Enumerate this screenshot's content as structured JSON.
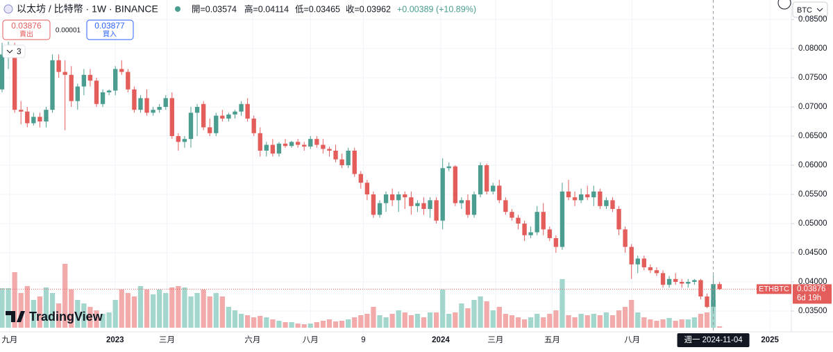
{
  "header": {
    "symbol": "以太坊 / 比特幣 · 1W · BINANCE",
    "ohlc": [
      "開=0.03574",
      "高=0.04114",
      "低=0.03465",
      "收=0.03962"
    ],
    "change": "+0.00389 (+10.89%)"
  },
  "trade": {
    "sell_price": "0.03876",
    "sell_label": "賣出",
    "spread": "0.00001",
    "buy_price": "0.03877",
    "buy_label": "買入"
  },
  "indicator_count": "3",
  "currency": "BTC",
  "brand": "TradingView",
  "chart_data": {
    "type": "candlestick",
    "open": [
      0.073,
      0.079,
      0.0805,
      0.0695,
      0.0692,
      0.0672,
      0.0683,
      0.0675,
      0.0695,
      0.078,
      0.076,
      0.0755,
      0.071,
      0.0735,
      0.0755,
      0.0745,
      0.0705,
      0.0725,
      0.0728,
      0.0765,
      0.076,
      0.073,
      0.0695,
      0.0715,
      0.069,
      0.0695,
      0.07,
      0.0715,
      0.065,
      0.064,
      0.0645,
      0.069,
      0.0705,
      0.0665,
      0.0655,
      0.0685,
      0.068,
      0.0687,
      0.0692,
      0.0705,
      0.068,
      0.0655,
      0.0625,
      0.0635,
      0.062,
      0.0637,
      0.0633,
      0.064,
      0.0635,
      0.0632,
      0.0645,
      0.0635,
      0.0628,
      0.0625,
      0.061,
      0.06,
      0.0625,
      0.0585,
      0.057,
      0.055,
      0.0515,
      0.0535,
      0.055,
      0.054,
      0.055,
      0.0545,
      0.053,
      0.0535,
      0.0525,
      0.054,
      0.0505,
      0.0595,
      0.0598,
      0.0535,
      0.054,
      0.0515,
      0.055,
      0.06,
      0.0555,
      0.0565,
      0.054,
      0.052,
      0.051,
      0.05,
      0.048,
      0.0485,
      0.052,
      0.049,
      0.0475,
      0.046,
      0.0555,
      0.0545,
      0.054,
      0.055,
      0.0545,
      0.0555,
      0.053,
      0.054,
      0.0525,
      0.049,
      0.046,
      0.043,
      0.044,
      0.0425,
      0.042,
      0.0415,
      0.0395,
      0.0405,
      0.04,
      0.0397,
      0.04,
      0.0403,
      0.0375,
      0.03574,
      0.03962
    ],
    "high": [
      0.081,
      0.0812,
      0.081,
      0.071,
      0.07,
      0.069,
      0.069,
      0.07,
      0.079,
      0.079,
      0.078,
      0.077,
      0.074,
      0.0765,
      0.0765,
      0.075,
      0.073,
      0.073,
      0.077,
      0.078,
      0.0765,
      0.0735,
      0.072,
      0.073,
      0.07,
      0.0705,
      0.072,
      0.0725,
      0.0655,
      0.065,
      0.07,
      0.0705,
      0.071,
      0.068,
      0.069,
      0.0695,
      0.069,
      0.0695,
      0.071,
      0.0715,
      0.0685,
      0.0665,
      0.064,
      0.0645,
      0.064,
      0.0645,
      0.0642,
      0.0645,
      0.064,
      0.065,
      0.065,
      0.0645,
      0.0632,
      0.0635,
      0.062,
      0.063,
      0.063,
      0.059,
      0.0575,
      0.0555,
      0.054,
      0.0555,
      0.056,
      0.0555,
      0.0555,
      0.0555,
      0.054,
      0.0545,
      0.0545,
      0.0545,
      0.0612,
      0.0605,
      0.06,
      0.0545,
      0.055,
      0.0555,
      0.0605,
      0.0603,
      0.057,
      0.0575,
      0.0545,
      0.0525,
      0.0515,
      0.0505,
      0.0495,
      0.053,
      0.0535,
      0.0495,
      0.048,
      0.057,
      0.0575,
      0.0555,
      0.056,
      0.0565,
      0.0565,
      0.056,
      0.0545,
      0.0545,
      0.053,
      0.0495,
      0.0465,
      0.0445,
      0.0445,
      0.043,
      0.0425,
      0.042,
      0.041,
      0.0415,
      0.0405,
      0.0405,
      0.0405,
      0.0405,
      0.038,
      0.04114,
      0.04
    ],
    "low": [
      0.0725,
      0.0765,
      0.069,
      0.067,
      0.0665,
      0.0668,
      0.0665,
      0.0665,
      0.069,
      0.075,
      0.066,
      0.07,
      0.0695,
      0.072,
      0.0735,
      0.07,
      0.07,
      0.072,
      0.072,
      0.0755,
      0.0725,
      0.069,
      0.069,
      0.0685,
      0.0685,
      0.069,
      0.0695,
      0.0645,
      0.0625,
      0.063,
      0.063,
      0.065,
      0.066,
      0.065,
      0.065,
      0.0675,
      0.0675,
      0.068,
      0.0685,
      0.0675,
      0.065,
      0.0615,
      0.0615,
      0.0615,
      0.0615,
      0.063,
      0.063,
      0.063,
      0.0625,
      0.0628,
      0.063,
      0.062,
      0.0615,
      0.0605,
      0.0595,
      0.0595,
      0.058,
      0.056,
      0.054,
      0.051,
      0.051,
      0.052,
      0.053,
      0.052,
      0.0525,
      0.0515,
      0.052,
      0.0515,
      0.051,
      0.05,
      0.049,
      0.059,
      0.053,
      0.0525,
      0.051,
      0.051,
      0.0545,
      0.055,
      0.055,
      0.0535,
      0.0515,
      0.0505,
      0.049,
      0.047,
      0.0475,
      0.048,
      0.048,
      0.047,
      0.045,
      0.0455,
      0.054,
      0.053,
      0.0535,
      0.054,
      0.053,
      0.0525,
      0.0525,
      0.052,
      0.048,
      0.045,
      0.0405,
      0.0415,
      0.042,
      0.0415,
      0.041,
      0.039,
      0.039,
      0.0395,
      0.039,
      0.039,
      0.0395,
      0.037,
      0.0355,
      0.03465,
      0.0386
    ],
    "close": [
      0.079,
      0.0805,
      0.0695,
      0.0692,
      0.0672,
      0.0683,
      0.0675,
      0.0695,
      0.078,
      0.076,
      0.0755,
      0.071,
      0.0735,
      0.0755,
      0.0745,
      0.0705,
      0.0725,
      0.0728,
      0.0765,
      0.076,
      0.073,
      0.0695,
      0.0715,
      0.069,
      0.0695,
      0.07,
      0.0715,
      0.065,
      0.064,
      0.0645,
      0.069,
      0.07,
      0.0665,
      0.0655,
      0.0685,
      0.068,
      0.0687,
      0.0692,
      0.0705,
      0.068,
      0.0655,
      0.0625,
      0.0635,
      0.062,
      0.0637,
      0.0633,
      0.064,
      0.0635,
      0.0632,
      0.0645,
      0.0635,
      0.0628,
      0.0625,
      0.061,
      0.06,
      0.0625,
      0.0585,
      0.057,
      0.055,
      0.0515,
      0.0535,
      0.055,
      0.054,
      0.055,
      0.0545,
      0.053,
      0.0535,
      0.0525,
      0.054,
      0.0505,
      0.0595,
      0.0598,
      0.0535,
      0.054,
      0.0515,
      0.055,
      0.06,
      0.0555,
      0.0565,
      0.054,
      0.052,
      0.051,
      0.05,
      0.048,
      0.0485,
      0.052,
      0.049,
      0.0475,
      0.046,
      0.0555,
      0.0545,
      0.054,
      0.055,
      0.0545,
      0.0555,
      0.053,
      0.054,
      0.0525,
      0.049,
      0.046,
      0.043,
      0.044,
      0.0425,
      0.042,
      0.0415,
      0.0395,
      0.0405,
      0.04,
      0.0397,
      0.04,
      0.0403,
      0.0375,
      0.0357,
      0.03962,
      0.03876
    ],
    "volume": [
      57,
      57,
      80,
      50,
      60,
      40,
      45,
      58,
      50,
      35,
      92,
      55,
      40,
      35,
      30,
      25,
      20,
      22,
      40,
      55,
      50,
      45,
      60,
      55,
      48,
      55,
      50,
      58,
      60,
      58,
      45,
      50,
      55,
      45,
      50,
      45,
      30,
      25,
      20,
      18,
      15,
      17,
      15,
      12,
      10,
      8,
      8,
      6,
      5,
      6,
      8,
      10,
      12,
      9,
      10,
      12,
      15,
      18,
      20,
      30,
      18,
      15,
      20,
      25,
      22,
      18,
      20,
      15,
      22,
      22,
      55,
      20,
      22,
      35,
      28,
      40,
      45,
      38,
      25,
      30,
      20,
      18,
      15,
      12,
      15,
      20,
      15,
      20,
      25,
      70,
      18,
      15,
      20,
      18,
      20,
      18,
      22,
      18,
      25,
      30,
      40,
      22,
      15,
      12,
      10,
      12,
      14,
      10,
      12,
      12,
      15,
      20,
      22,
      40,
      2
    ],
    "up_color": "#4a9d8f",
    "down_color": "#e35d5b",
    "up_volume_color": "#a3d6cd",
    "down_volume_color": "#f2abaa",
    "ylim": [
      0.03143,
      0.08833
    ],
    "yticks": [
      {
        "value": 0.035,
        "label": "0.03500"
      },
      {
        "value": 0.04,
        "label": "0.04000"
      },
      {
        "value": 0.045,
        "label": "0.04500"
      },
      {
        "value": 0.05,
        "label": "0.05000"
      },
      {
        "value": 0.055,
        "label": "0.05500"
      },
      {
        "value": 0.06,
        "label": "0.06000"
      },
      {
        "value": 0.065,
        "label": "0.06500"
      },
      {
        "value": 0.07,
        "label": "0.07000"
      },
      {
        "value": 0.075,
        "label": "0.07500"
      },
      {
        "value": 0.08,
        "label": "0.08000"
      },
      {
        "value": 0.085,
        "label": "0.08500"
      }
    ],
    "xlim": [
      -0.33,
      125.4
    ],
    "xticks": [
      {
        "value": 1.2,
        "label": "九月"
      },
      {
        "value": 17.95,
        "label": "2023"
      },
      {
        "value": 26.2,
        "label": "三月"
      },
      {
        "value": 39.8,
        "label": "六月"
      },
      {
        "value": 49,
        "label": "八月"
      },
      {
        "value": 57.4,
        "label": "9"
      },
      {
        "value": 69.7,
        "label": "2024"
      },
      {
        "value": 78.4,
        "label": "三月"
      },
      {
        "value": 87.4,
        "label": "五月"
      },
      {
        "value": 100.1,
        "label": "八月"
      },
      {
        "value": 122,
        "label": "2025"
      }
    ],
    "grid": true,
    "last_price": {
      "symbol": "ETHBTC",
      "value": 0.03876,
      "countdown": "6d 19h"
    },
    "crosshair": {
      "index": 113,
      "label": "週一 2024-11-04"
    }
  }
}
